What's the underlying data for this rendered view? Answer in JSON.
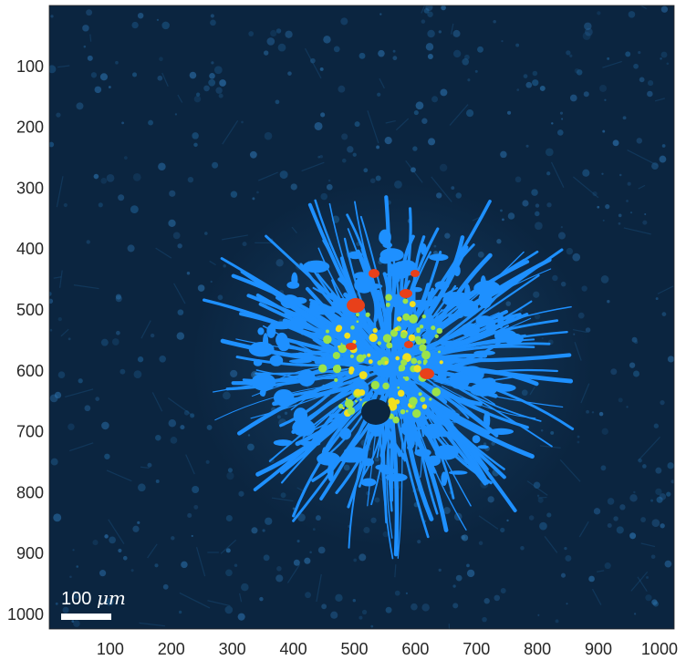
{
  "image": {
    "x_ticks": [
      "100",
      "200",
      "300",
      "400",
      "500",
      "600",
      "700",
      "800",
      "900",
      "1000"
    ],
    "y_ticks": [
      "100",
      "200",
      "300",
      "400",
      "500",
      "600",
      "700",
      "800",
      "900",
      "1000"
    ],
    "scale_bar": {
      "value": "100",
      "unit": "μm"
    },
    "colors": {
      "background": "#0b2540",
      "cell_blue": "#1e90ff",
      "dim_blue": "#2a6ea8",
      "green": "#9be34a",
      "yellow": "#f0e020",
      "red": "#e8401a"
    }
  }
}
